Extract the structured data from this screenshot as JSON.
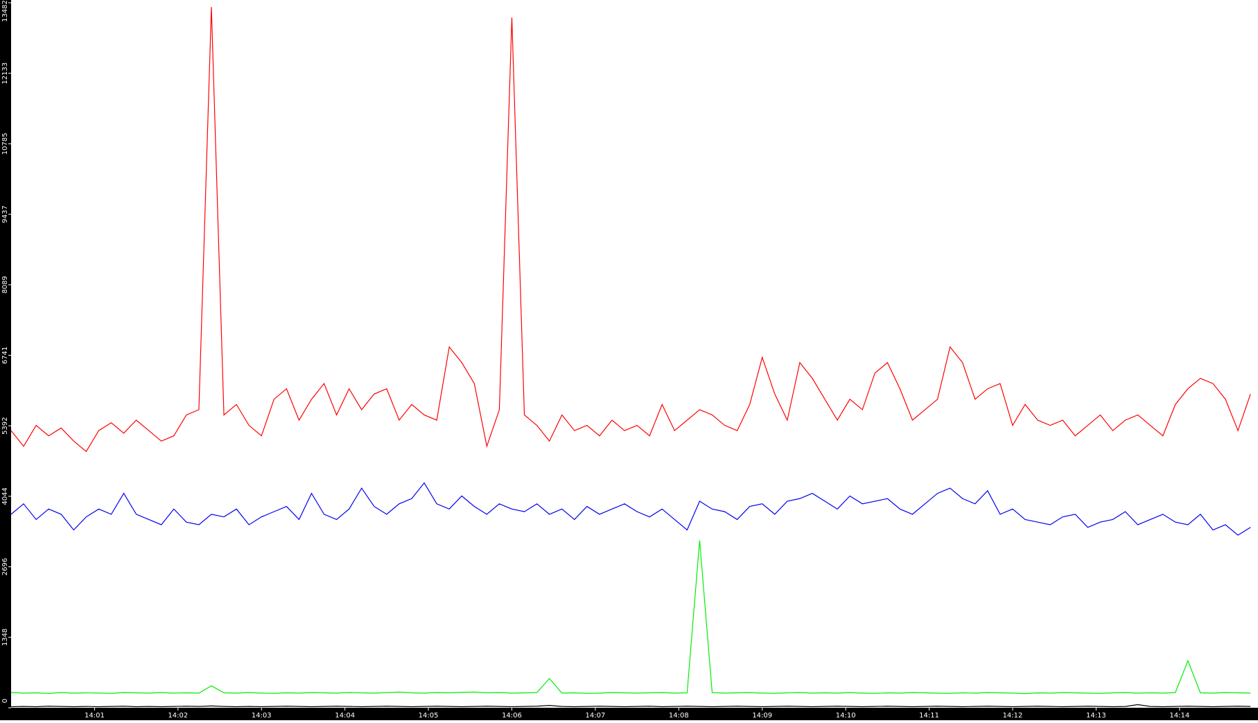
{
  "chart_data": {
    "type": "line",
    "x": [
      0,
      0.15,
      0.3,
      0.45,
      0.6,
      0.75,
      0.9,
      1.05,
      1.2,
      1.35,
      1.5,
      1.65,
      1.8,
      1.95,
      2.1,
      2.25,
      2.4,
      2.55,
      2.7,
      2.85,
      3,
      3.15,
      3.3,
      3.45,
      3.6,
      3.75,
      3.9,
      4.05,
      4.2,
      4.35,
      4.5,
      4.65,
      4.8,
      4.95,
      5.1,
      5.25,
      5.4,
      5.55,
      5.7,
      5.85,
      6,
      6.15,
      6.3,
      6.45,
      6.6,
      6.75,
      6.9,
      7.05,
      7.2,
      7.35,
      7.5,
      7.65,
      7.8,
      7.95,
      8.1,
      8.25,
      8.4,
      8.55,
      8.7,
      8.85,
      9,
      9.15,
      9.3,
      9.45,
      9.6,
      9.75,
      9.9,
      10.05,
      10.2,
      10.35,
      10.5,
      10.65,
      10.8,
      10.95,
      11.1,
      11.25,
      11.4,
      11.55,
      11.7,
      11.85,
      12,
      12.15,
      12.3,
      12.45,
      12.6,
      12.75,
      12.9,
      13.05,
      13.2,
      13.35,
      13.5,
      13.65,
      13.8,
      13.95,
      14.1,
      14.25,
      14.4,
      14.55,
      14.7,
      14.85
    ],
    "series": [
      {
        "color": "#ff0000",
        "values": [
          5300,
          5000,
          5400,
          5200,
          5350,
          5100,
          4900,
          5300,
          5450,
          5250,
          5500,
          5300,
          5100,
          5200,
          5600,
          5700,
          13400,
          5600,
          5800,
          5400,
          5200,
          5900,
          6100,
          5500,
          5900,
          6200,
          5600,
          6100,
          5700,
          6000,
          6100,
          5500,
          5800,
          5600,
          5500,
          6900,
          6600,
          6200,
          5000,
          5700,
          13200,
          5600,
          5400,
          5100,
          5600,
          5300,
          5400,
          5200,
          5500,
          5300,
          5400,
          5200,
          5800,
          5300,
          5500,
          5700,
          5600,
          5400,
          5300,
          5800,
          6700,
          6000,
          5500,
          6600,
          6300,
          5900,
          5500,
          5900,
          5700,
          6400,
          6600,
          6100,
          5500,
          5700,
          5900,
          6900,
          6600,
          5900,
          6100,
          6200,
          5400,
          5800,
          5500,
          5400,
          5500,
          5200,
          5400,
          5600,
          5300,
          5500,
          5600,
          5400,
          5200,
          5800,
          6100,
          6300,
          6200,
          5900,
          5300,
          6000
        ]
      },
      {
        "color": "#0000ee",
        "values": [
          3700,
          3900,
          3600,
          3800,
          3700,
          3400,
          3650,
          3800,
          3700,
          4100,
          3700,
          3600,
          3500,
          3800,
          3550,
          3500,
          3700,
          3650,
          3800,
          3500,
          3650,
          3750,
          3850,
          3600,
          4100,
          3700,
          3600,
          3800,
          4200,
          3850,
          3700,
          3900,
          4000,
          4300,
          3900,
          3800,
          4050,
          3850,
          3700,
          3900,
          3800,
          3750,
          3900,
          3700,
          3800,
          3600,
          3850,
          3700,
          3800,
          3900,
          3750,
          3650,
          3800,
          3600,
          3400,
          3950,
          3800,
          3750,
          3600,
          3850,
          3900,
          3700,
          3950,
          4000,
          4100,
          3950,
          3800,
          4050,
          3900,
          3950,
          4000,
          3800,
          3700,
          3900,
          4100,
          4200,
          4000,
          3900,
          4150,
          3700,
          3800,
          3600,
          3550,
          3500,
          3650,
          3700,
          3450,
          3550,
          3600,
          3750,
          3500,
          3600,
          3700,
          3550,
          3500,
          3700,
          3400,
          3500,
          3300,
          3450
        ]
      },
      {
        "color": "#00ee00",
        "values": [
          290,
          280,
          285,
          275,
          290,
          280,
          285,
          280,
          275,
          290,
          285,
          280,
          290,
          280,
          285,
          280,
          420,
          285,
          280,
          290,
          280,
          275,
          285,
          280,
          290,
          285,
          280,
          290,
          285,
          280,
          290,
          300,
          285,
          280,
          290,
          285,
          295,
          300,
          285,
          290,
          280,
          285,
          290,
          560,
          280,
          285,
          275,
          280,
          290,
          285,
          280,
          285,
          290,
          280,
          285,
          3200,
          290,
          280,
          285,
          290,
          280,
          275,
          285,
          290,
          280,
          285,
          280,
          290,
          280,
          275,
          285,
          280,
          290,
          285,
          280,
          275,
          285,
          280,
          290,
          285,
          280,
          270,
          285,
          280,
          290,
          285,
          280,
          275,
          285,
          290,
          280,
          285,
          280,
          290,
          900,
          285,
          280,
          290,
          285,
          280
        ]
      },
      {
        "color": "#000000",
        "values": [
          20,
          25,
          20,
          30,
          25,
          20,
          25,
          20,
          25,
          30,
          20,
          25,
          20,
          25,
          30,
          25,
          35,
          25,
          20,
          25,
          20,
          25,
          30,
          25,
          20,
          25,
          30,
          25,
          20,
          25,
          30,
          25,
          20,
          25,
          30,
          25,
          20,
          25,
          30,
          25,
          20,
          25,
          30,
          45,
          25,
          20,
          25,
          30,
          25,
          20,
          25,
          30,
          20,
          25,
          30,
          25,
          20,
          25,
          30,
          25,
          20,
          25,
          30,
          25,
          20,
          25,
          30,
          25,
          20,
          25,
          30,
          25,
          20,
          25,
          30,
          25,
          20,
          25,
          30,
          25,
          20,
          25,
          30,
          25,
          20,
          25,
          30,
          25,
          20,
          25,
          60,
          25,
          20,
          25,
          30,
          25,
          20,
          25,
          30,
          25
        ]
      }
    ],
    "xlim": [
      0,
      14.94
    ],
    "xticks": [
      {
        "value": 1,
        "label": "14:01"
      },
      {
        "value": 2,
        "label": "14:02"
      },
      {
        "value": 3,
        "label": "14:03"
      },
      {
        "value": 4,
        "label": "14:04"
      },
      {
        "value": 5,
        "label": "14:05"
      },
      {
        "value": 6,
        "label": "14:06"
      },
      {
        "value": 7,
        "label": "14:07"
      },
      {
        "value": 8,
        "label": "14:08"
      },
      {
        "value": 9,
        "label": "14:09"
      },
      {
        "value": 10,
        "label": "14:10"
      },
      {
        "value": 11,
        "label": "14:11"
      },
      {
        "value": 12,
        "label": "14:12"
      },
      {
        "value": 13,
        "label": "14:13"
      },
      {
        "value": 14,
        "label": "14:14"
      }
    ],
    "ylim": [
      0,
      13482
    ],
    "yticks": [
      0,
      1348,
      2696,
      4044,
      5392,
      6741,
      8089,
      9437,
      10785,
      12133,
      13482
    ]
  }
}
